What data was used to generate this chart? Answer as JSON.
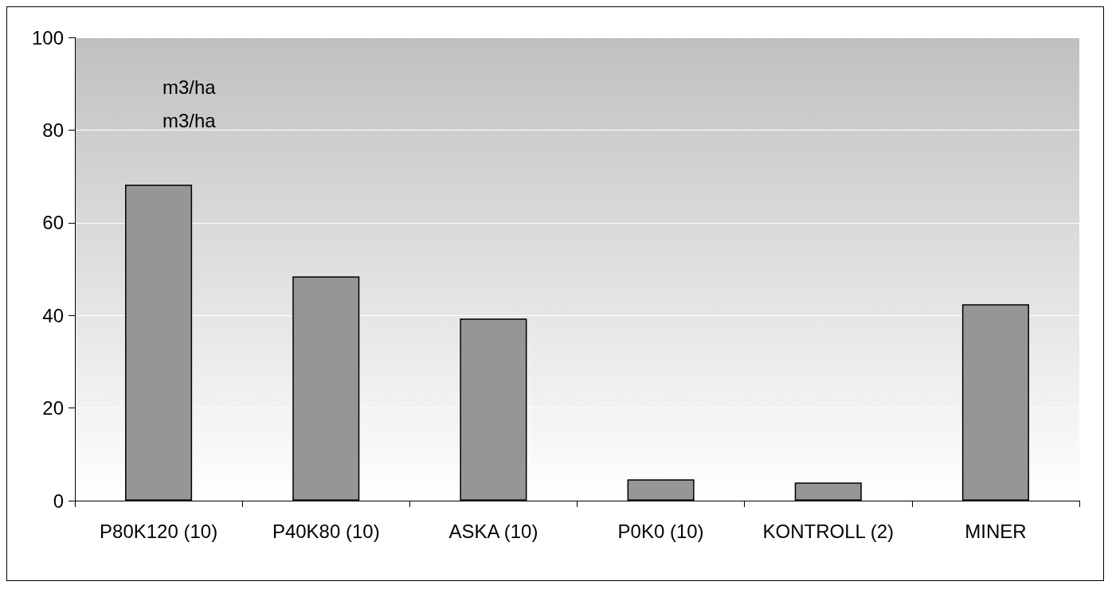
{
  "chart_data": {
    "type": "bar",
    "categories": [
      "P80K120 (10)",
      "P40K80 (10)",
      "ASKA (10)",
      "P0K0 (10)",
      "KONTROLL (2)",
      "MINER"
    ],
    "values": [
      68.2,
      48.4,
      39.3,
      4.6,
      3.9,
      42.4
    ],
    "color": "#969696",
    "ylim": [
      0,
      100
    ],
    "yticks": [
      0,
      20,
      40,
      60,
      80,
      100
    ],
    "grid": "y",
    "annotations": [
      "m3/ha",
      "m3/ha"
    ]
  }
}
